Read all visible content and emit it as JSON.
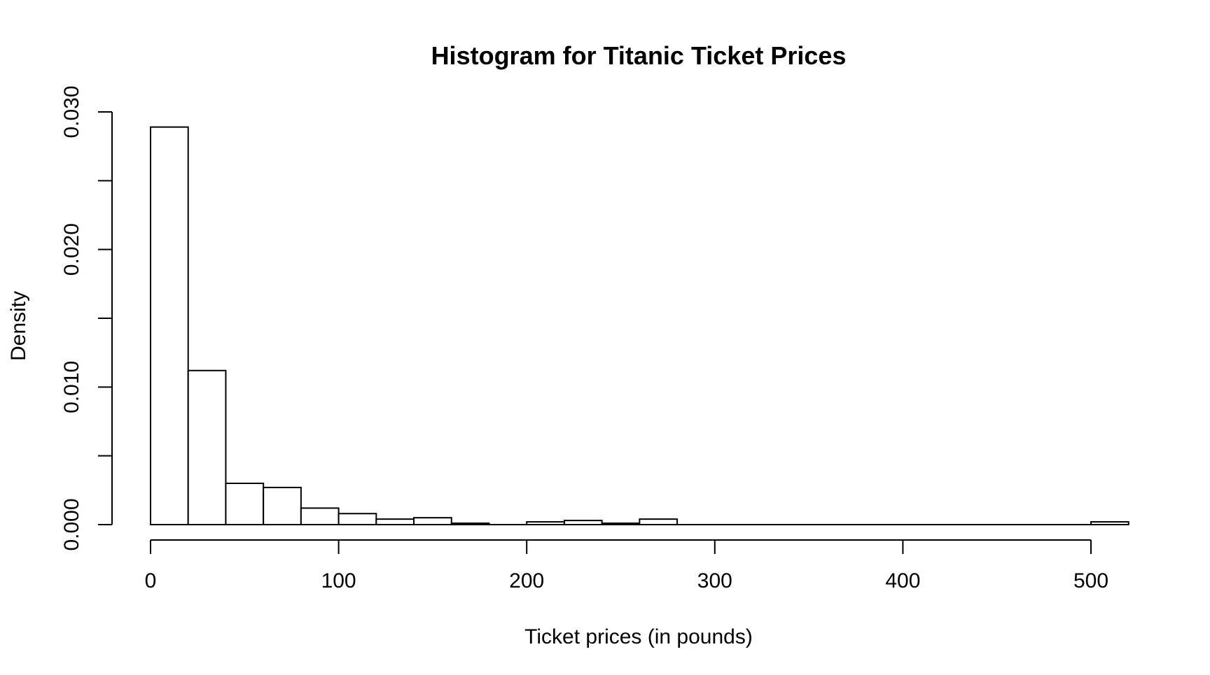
{
  "chart_data": {
    "type": "bar",
    "title": "Histogram for Titanic Ticket Prices",
    "xlabel": "Ticket prices (in pounds)",
    "ylabel": "Density",
    "bin_width": 20,
    "bins": [
      {
        "start": 0,
        "end": 20,
        "density": 0.0289
      },
      {
        "start": 20,
        "end": 40,
        "density": 0.0112
      },
      {
        "start": 40,
        "end": 60,
        "density": 0.003
      },
      {
        "start": 60,
        "end": 80,
        "density": 0.0027
      },
      {
        "start": 80,
        "end": 100,
        "density": 0.0012
      },
      {
        "start": 100,
        "end": 120,
        "density": 0.0008
      },
      {
        "start": 120,
        "end": 140,
        "density": 0.0004
      },
      {
        "start": 140,
        "end": 160,
        "density": 0.0005
      },
      {
        "start": 160,
        "end": 180,
        "density": 0.0001
      },
      {
        "start": 180,
        "end": 200,
        "density": 0.0
      },
      {
        "start": 200,
        "end": 220,
        "density": 0.0002
      },
      {
        "start": 220,
        "end": 240,
        "density": 0.0003
      },
      {
        "start": 240,
        "end": 260,
        "density": 0.0001
      },
      {
        "start": 260,
        "end": 280,
        "density": 0.0004
      },
      {
        "start": 280,
        "end": 300,
        "density": 0.0
      },
      {
        "start": 300,
        "end": 320,
        "density": 0.0
      },
      {
        "start": 320,
        "end": 340,
        "density": 0.0
      },
      {
        "start": 340,
        "end": 360,
        "density": 0.0
      },
      {
        "start": 360,
        "end": 380,
        "density": 0.0
      },
      {
        "start": 380,
        "end": 400,
        "density": 0.0
      },
      {
        "start": 400,
        "end": 420,
        "density": 0.0
      },
      {
        "start": 420,
        "end": 440,
        "density": 0.0
      },
      {
        "start": 440,
        "end": 460,
        "density": 0.0
      },
      {
        "start": 460,
        "end": 480,
        "density": 0.0
      },
      {
        "start": 480,
        "end": 500,
        "density": 0.0
      },
      {
        "start": 500,
        "end": 520,
        "density": 0.0002
      }
    ],
    "xlim": [
      0,
      520
    ],
    "ylim": [
      0,
      0.03
    ],
    "x_ticks": [
      0,
      100,
      200,
      300,
      400,
      500
    ],
    "x_tick_labels": [
      "0",
      "100",
      "200",
      "300",
      "400",
      "500"
    ],
    "y_ticks": [
      0,
      0.005,
      0.01,
      0.015,
      0.02,
      0.025,
      0.03
    ],
    "y_tick_labels": [
      "0.000",
      "",
      "0.010",
      "",
      "0.020",
      "",
      "0.030"
    ],
    "grid": false,
    "bar_fill": "#ffffff",
    "bar_stroke": "#000000"
  }
}
